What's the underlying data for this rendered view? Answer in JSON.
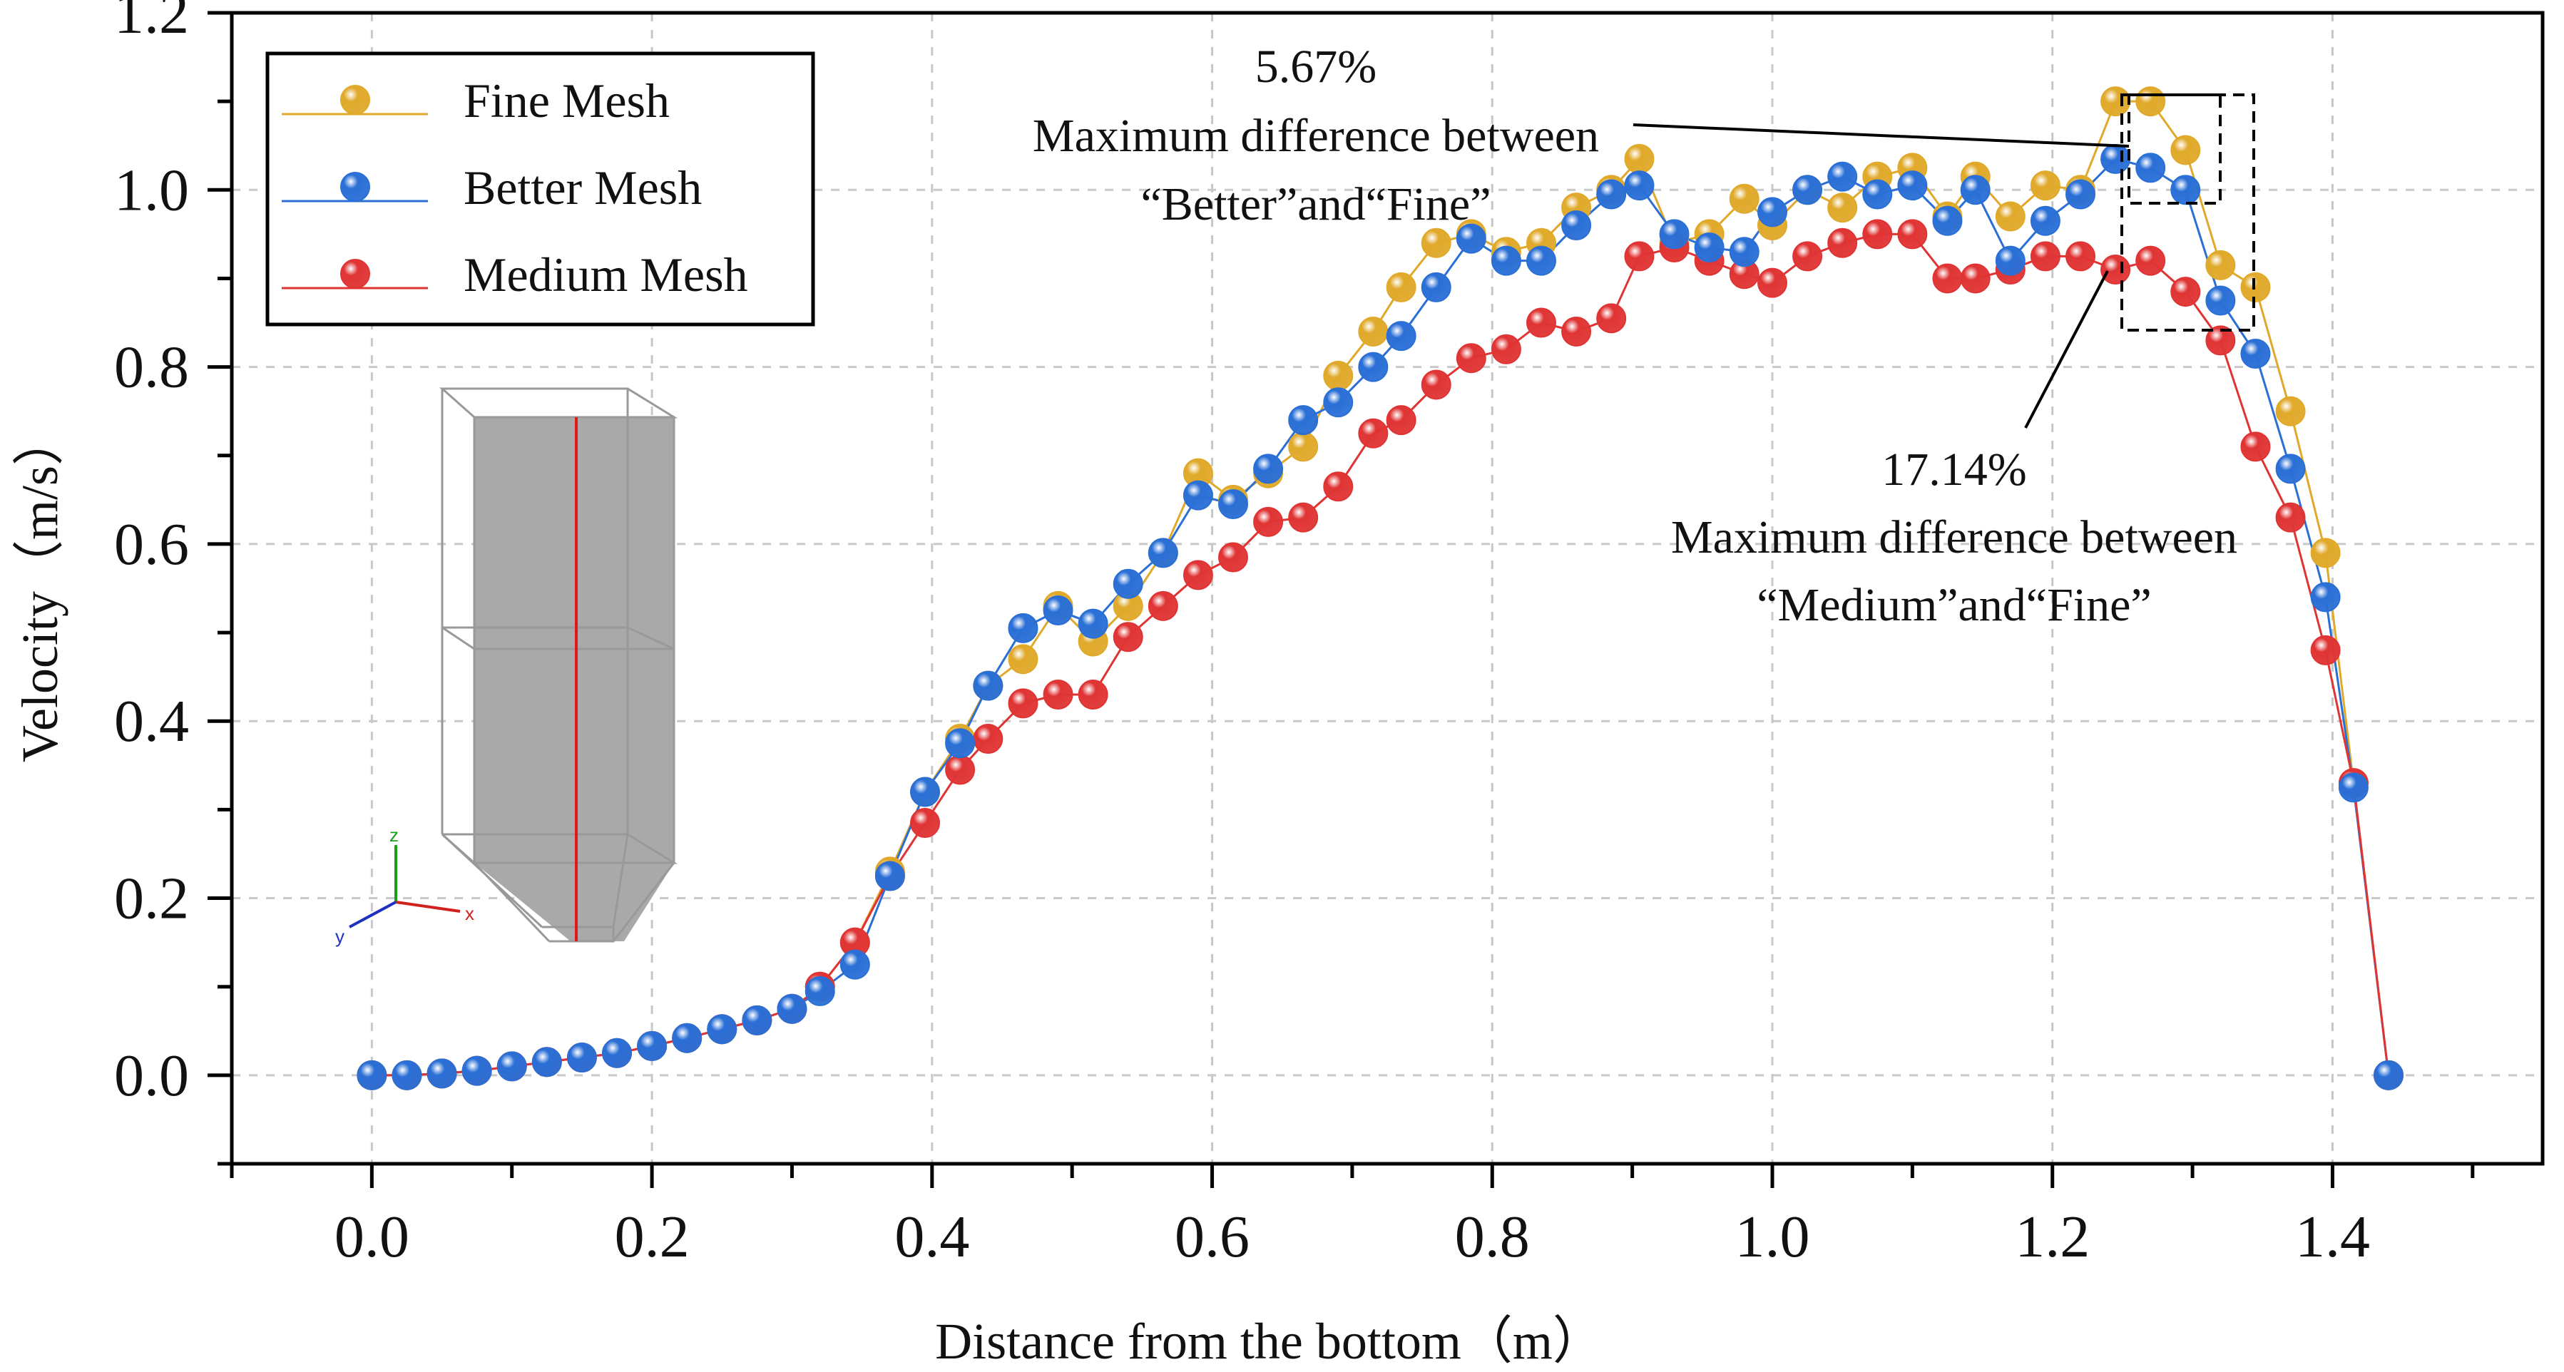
{
  "chart_data": {
    "type": "line",
    "title": "",
    "xlabel": "Distance from the bottom（m）",
    "ylabel": "Velocity（m/s）",
    "xlim": [
      -0.1,
      1.55
    ],
    "ylim": [
      -0.1,
      1.2
    ],
    "xticks": [
      0.0,
      0.2,
      0.4,
      0.6,
      0.8,
      1.0,
      1.2,
      1.4
    ],
    "xtick_labels": [
      "0.0",
      "0.2",
      "0.4",
      "0.6",
      "0.8",
      "1.0",
      "1.2",
      "1.4"
    ],
    "yticks": [
      0.0,
      0.2,
      0.4,
      0.6,
      0.8,
      1.0,
      1.2
    ],
    "ytick_labels": [
      "0.0",
      "0.2",
      "0.4",
      "0.6",
      "0.8",
      "1.0",
      "1.2"
    ],
    "grid": true,
    "legend_position": "top-left",
    "x": [
      0.0,
      0.025,
      0.05,
      0.075,
      0.1,
      0.125,
      0.15,
      0.175,
      0.2,
      0.225,
      0.25,
      0.275,
      0.3,
      0.32,
      0.345,
      0.37,
      0.395,
      0.42,
      0.44,
      0.465,
      0.49,
      0.515,
      0.54,
      0.565,
      0.59,
      0.615,
      0.64,
      0.665,
      0.69,
      0.715,
      0.735,
      0.76,
      0.785,
      0.81,
      0.835,
      0.86,
      0.885,
      0.905,
      0.93,
      0.955,
      0.98,
      1.0,
      1.025,
      1.05,
      1.075,
      1.1,
      1.125,
      1.145,
      1.17,
      1.195,
      1.22,
      1.245,
      1.27,
      1.295,
      1.32,
      1.345,
      1.37,
      1.395,
      1.415,
      1.44
    ],
    "series": [
      {
        "name": "Fine Mesh",
        "color": "#e0a92a",
        "values": [
          0.0,
          0.0,
          0.002,
          0.005,
          0.01,
          0.015,
          0.02,
          0.025,
          0.033,
          0.042,
          0.052,
          0.062,
          0.075,
          0.1,
          0.15,
          0.23,
          0.32,
          0.38,
          0.44,
          0.47,
          0.53,
          0.49,
          0.53,
          0.59,
          0.68,
          0.65,
          0.68,
          0.71,
          0.79,
          0.84,
          0.89,
          0.94,
          0.95,
          0.93,
          0.94,
          0.98,
          1.0,
          1.035,
          0.94,
          0.95,
          0.99,
          0.96,
          1.0,
          0.98,
          1.015,
          1.025,
          0.97,
          1.015,
          0.97,
          1.005,
          1.0,
          1.1,
          1.1,
          1.045,
          0.915,
          0.89,
          0.75,
          0.59,
          0.33,
          0.0
        ]
      },
      {
        "name": "Better Mesh",
        "color": "#2a6fd6",
        "values": [
          0.0,
          0.0,
          0.002,
          0.005,
          0.01,
          0.015,
          0.02,
          0.025,
          0.033,
          0.042,
          0.052,
          0.062,
          0.075,
          0.095,
          0.125,
          0.225,
          0.32,
          0.375,
          0.44,
          0.505,
          0.525,
          0.51,
          0.555,
          0.59,
          0.655,
          0.645,
          0.685,
          0.74,
          0.76,
          0.8,
          0.835,
          0.89,
          0.945,
          0.92,
          0.92,
          0.96,
          0.995,
          1.005,
          0.95,
          0.935,
          0.93,
          0.975,
          1.0,
          1.015,
          0.995,
          1.005,
          0.965,
          1.0,
          0.92,
          0.965,
          0.995,
          1.035,
          1.025,
          1.0,
          0.875,
          0.815,
          0.685,
          0.54,
          0.325,
          0.0
        ]
      },
      {
        "name": "Medium Mesh",
        "color": "#e03434",
        "values": [
          0.0,
          0.0,
          0.002,
          0.005,
          0.01,
          0.015,
          0.02,
          0.025,
          0.033,
          0.042,
          0.052,
          0.062,
          0.075,
          0.1,
          0.15,
          0.225,
          0.285,
          0.345,
          0.38,
          0.42,
          0.43,
          0.43,
          0.495,
          0.53,
          0.565,
          0.585,
          0.625,
          0.63,
          0.665,
          0.725,
          0.74,
          0.78,
          0.81,
          0.82,
          0.85,
          0.84,
          0.855,
          0.925,
          0.935,
          0.92,
          0.905,
          0.895,
          0.925,
          0.94,
          0.95,
          0.95,
          0.9,
          0.9,
          0.91,
          0.925,
          0.925,
          0.91,
          0.92,
          0.885,
          0.83,
          0.71,
          0.63,
          0.48,
          0.33,
          0.0
        ]
      }
    ],
    "annotations": [
      {
        "name": "annotation-better-fine",
        "lines": [
          "5.67%",
          "Maximum difference between",
          "“Better”and“Fine”"
        ]
      },
      {
        "name": "annotation-medium-fine",
        "lines": [
          "17.14%",
          "Maximum difference between",
          "“Medium”and“Fine”"
        ]
      }
    ],
    "inset": {
      "description_labels": [
        "z",
        "y",
        "x"
      ]
    }
  }
}
